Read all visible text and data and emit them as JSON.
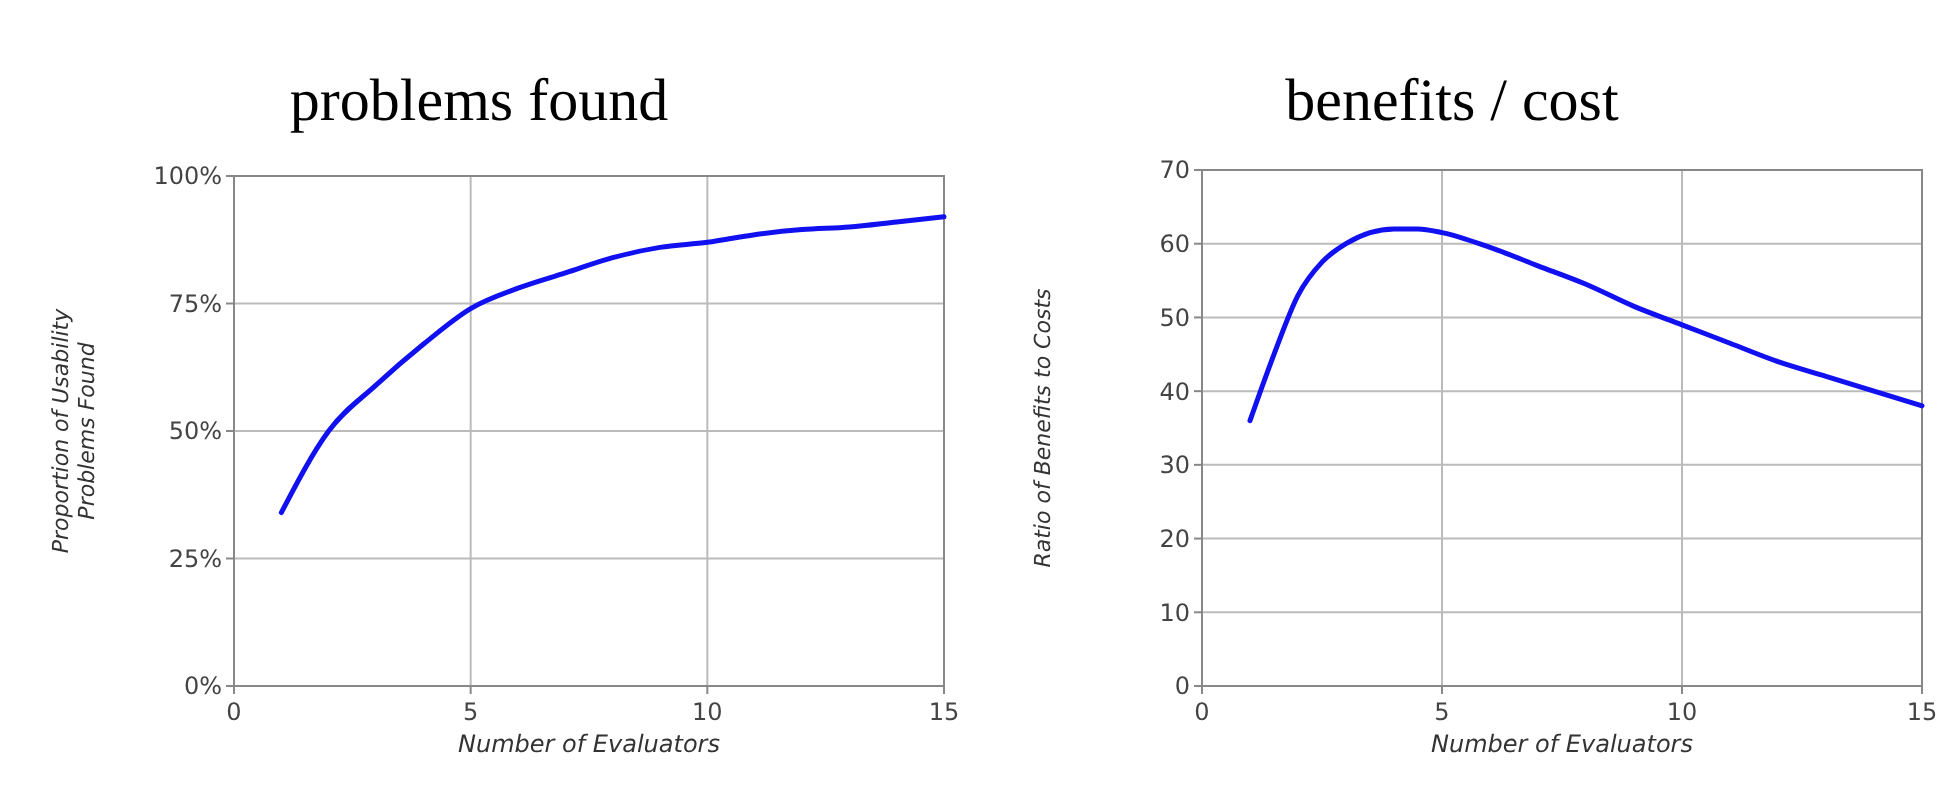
{
  "chart_data": [
    {
      "type": "line",
      "title": "problems found",
      "xlabel": "Number of Evaluators",
      "ylabel": "Proportion of Usability Problems Found",
      "x": [
        1,
        2,
        3,
        4,
        5,
        6,
        7,
        8,
        9,
        10,
        11,
        12,
        13,
        14,
        15
      ],
      "series": [
        {
          "color": "#1010f0",
          "values": [
            34,
            50,
            59,
            67,
            74,
            78,
            81,
            84,
            86,
            87,
            88.5,
            89.5,
            90,
            91,
            92
          ]
        }
      ],
      "xlim": [
        0,
        15
      ],
      "xticks": [
        0,
        5,
        10,
        15
      ],
      "ylim": [
        0,
        100
      ],
      "yticks": [
        {
          "value": 0,
          "label": "0%"
        },
        {
          "value": 25,
          "label": "25%"
        },
        {
          "value": 50,
          "label": "50%"
        },
        {
          "value": 75,
          "label": "75%"
        },
        {
          "value": 100,
          "label": "100%"
        }
      ],
      "grid": true,
      "marker": "none",
      "line_style": "solid"
    },
    {
      "type": "line",
      "title": "benefits / cost",
      "xlabel": "Number of Evaluators",
      "ylabel": "Ratio of Benefits to Costs",
      "x": [
        1,
        1.5,
        2,
        2.5,
        3,
        3.5,
        4,
        4.5,
        5,
        6,
        7,
        8,
        9,
        10,
        11,
        12,
        13,
        14,
        15
      ],
      "series": [
        {
          "color": "#1010f0",
          "values": [
            36,
            45,
            53,
            57.5,
            60,
            61.5,
            62,
            62,
            61.5,
            59.5,
            57,
            54.5,
            51.5,
            49,
            46.5,
            44,
            42,
            40,
            38
          ]
        }
      ],
      "xlim": [
        0,
        15
      ],
      "xticks": [
        0,
        5,
        10,
        15
      ],
      "ylim": [
        0,
        70
      ],
      "yticks": [
        0,
        10,
        20,
        30,
        40,
        50,
        60,
        70
      ],
      "grid": true,
      "marker": "none",
      "line_style": "solid"
    }
  ]
}
